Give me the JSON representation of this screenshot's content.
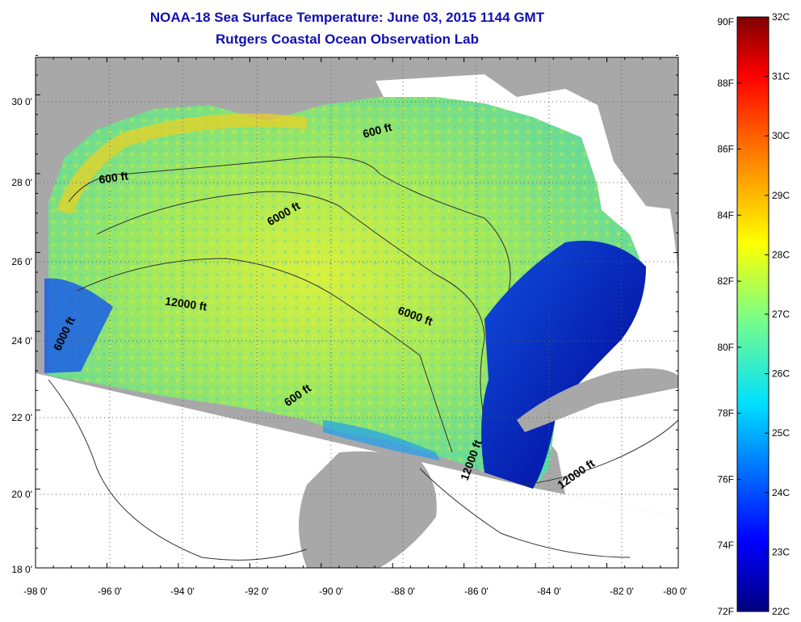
{
  "title": {
    "line1": "NOAA-18 Sea Surface Temperature:  June 03, 2015 1144 GMT",
    "line2": "Rutgers Coastal Ocean Observation Lab"
  },
  "axes": {
    "lon_ticks": [
      "-98 0'",
      "-96 0'",
      "-94 0'",
      "-92 0'",
      "-90 0'",
      "-88 0'",
      "-86 0'",
      "-84 0'",
      "-82 0'",
      "-80 0'"
    ],
    "lat_ticks": [
      "18 0'",
      "20 0'",
      "22 0'",
      "24 0'",
      "26 0'",
      "28 0'",
      "30 0'"
    ]
  },
  "contour_labels": [
    {
      "text": "600 ft",
      "lon": -88.4,
      "lat": 29.0,
      "rot": -15
    },
    {
      "text": "600 ft",
      "lon": -95.8,
      "lat": 27.8,
      "rot": -8
    },
    {
      "text": "6000 ft",
      "lon": -91.0,
      "lat": 26.9,
      "rot": -30
    },
    {
      "text": "12000 ft",
      "lon": -93.8,
      "lat": 24.6,
      "rot": 8
    },
    {
      "text": "6000 ft",
      "lon": -87.4,
      "lat": 24.3,
      "rot": 20
    },
    {
      "text": "6000 ft",
      "lon": -97.1,
      "lat": 23.9,
      "rot": -65
    },
    {
      "text": "600 ft",
      "lon": -90.6,
      "lat": 22.3,
      "rot": -35
    },
    {
      "text": "12000 ft",
      "lon": -85.7,
      "lat": 20.7,
      "rot": -70
    },
    {
      "text": "12000 ft",
      "lon": -82.8,
      "lat": 20.3,
      "rot": -35
    }
  ],
  "colorbar": {
    "f_labels": [
      "90F",
      "88F",
      "86F",
      "84F",
      "82F",
      "80F",
      "78F",
      "76F",
      "74F",
      "72F"
    ],
    "c_labels": [
      "32C",
      "31C",
      "30C",
      "29C",
      "28C",
      "27C",
      "26C",
      "25C",
      "24C",
      "23C",
      "22C"
    ],
    "range_c": [
      22,
      32
    ],
    "range_f": [
      72,
      90
    ]
  },
  "colors": {
    "land": "#a8a8a8",
    "nodata": "#ffffff",
    "title": "#1010b0"
  }
}
